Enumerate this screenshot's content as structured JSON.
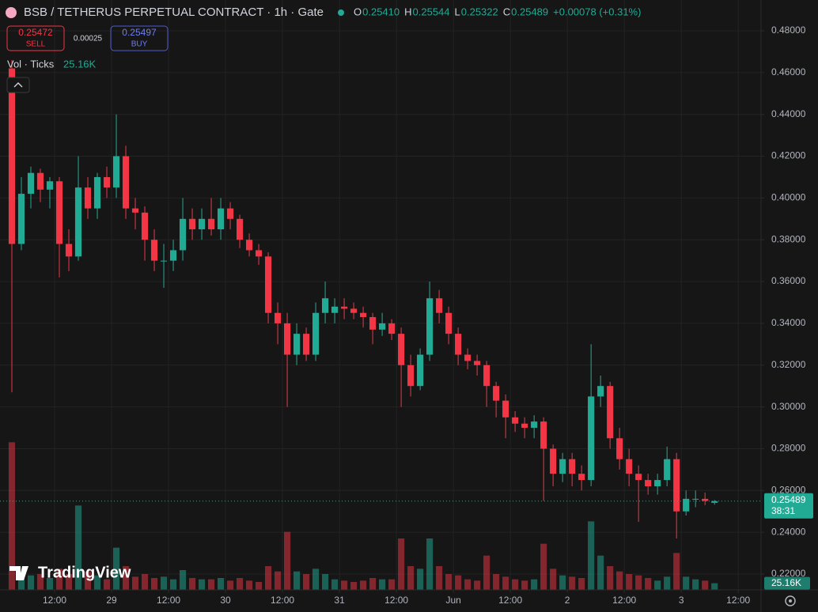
{
  "chart_data": {
    "type": "candlestick",
    "title": "BSB / TETHERUS PERPETUAL CONTRACT · 1h · Gate",
    "ohlc_header": [
      {
        "key": "O",
        "value": "0.25410"
      },
      {
        "key": "H",
        "value": "0.25544"
      },
      {
        "key": "L",
        "value": "0.25322"
      },
      {
        "key": "C",
        "value": "0.25489"
      }
    ],
    "change": "+0.00078 (+0.31%)",
    "sell": {
      "price": "0.25472",
      "label": "SELL"
    },
    "spread": "0.00025",
    "buy": {
      "price": "0.25497",
      "label": "BUY"
    },
    "volume_title": "Vol · Ticks",
    "brand": "TradingView",
    "up_color": "#22ab94",
    "down_color": "#f23645",
    "grid": true,
    "xlim": [
      0.5,
      160.8
    ],
    "ylim": [
      0.22,
      0.48
    ],
    "vlim": [
      0,
      600000
    ],
    "xticks": [
      {
        "value": 12,
        "label": "12:00"
      },
      {
        "value": 24,
        "label": "29"
      },
      {
        "value": 36,
        "label": "12:00"
      },
      {
        "value": 48,
        "label": "30"
      },
      {
        "value": 60,
        "label": "12:00"
      },
      {
        "value": 72,
        "label": "31"
      },
      {
        "value": 84,
        "label": "12:00"
      },
      {
        "value": 96,
        "label": "Jun"
      },
      {
        "value": 108,
        "label": "12:00"
      },
      {
        "value": 120,
        "label": "2"
      },
      {
        "value": 132,
        "label": "12:00"
      },
      {
        "value": 144,
        "label": "3"
      },
      {
        "value": 156,
        "label": "12:00"
      }
    ],
    "yticks": [
      {
        "value": 0.48,
        "label": "0.48000"
      },
      {
        "value": 0.46,
        "label": "0.46000"
      },
      {
        "value": 0.44,
        "label": "0.44000"
      },
      {
        "value": 0.42,
        "label": "0.42000"
      },
      {
        "value": 0.4,
        "label": "0.40000"
      },
      {
        "value": 0.38,
        "label": "0.38000"
      },
      {
        "value": 0.36,
        "label": "0.36000"
      },
      {
        "value": 0.34,
        "label": "0.34000"
      },
      {
        "value": 0.32,
        "label": "0.32000"
      },
      {
        "value": 0.3,
        "label": "0.30000"
      },
      {
        "value": 0.28,
        "label": "0.28000"
      },
      {
        "value": 0.26,
        "label": "0.26000"
      },
      {
        "value": 0.24,
        "label": "0.24000"
      },
      {
        "value": 0.22,
        "label": "0.22000"
      }
    ],
    "price_tag": {
      "value": 0.25489,
      "label": "0.25489",
      "countdown": "38:31"
    },
    "volume_tag": {
      "value": 25160,
      "label": "25.16K"
    },
    "candles": {
      "x": [
        3,
        5,
        7,
        9,
        11,
        13,
        15,
        17,
        19,
        21,
        23,
        25,
        27,
        29,
        31,
        33,
        35,
        37,
        39,
        41,
        43,
        45,
        47,
        49,
        51,
        53,
        55,
        57,
        59,
        61,
        63,
        65,
        67,
        69,
        71,
        73,
        75,
        77,
        79,
        81,
        83,
        85,
        87,
        89,
        91,
        93,
        95,
        97,
        99,
        101,
        103,
        105,
        107,
        109,
        111,
        113,
        115,
        117,
        119,
        121,
        123,
        125,
        127,
        129,
        131,
        133,
        135,
        137,
        139,
        141,
        143,
        145,
        147,
        149,
        151
      ],
      "open": [
        0.462,
        0.378,
        0.402,
        0.412,
        0.404,
        0.408,
        0.378,
        0.372,
        0.405,
        0.395,
        0.41,
        0.405,
        0.42,
        0.395,
        0.393,
        0.38,
        0.37,
        0.37,
        0.375,
        0.39,
        0.385,
        0.39,
        0.385,
        0.395,
        0.39,
        0.38,
        0.375,
        0.372,
        0.345,
        0.34,
        0.325,
        0.335,
        0.325,
        0.345,
        0.345,
        0.348,
        0.347,
        0.345,
        0.343,
        0.337,
        0.34,
        0.335,
        0.32,
        0.31,
        0.325,
        0.352,
        0.345,
        0.335,
        0.325,
        0.322,
        0.32,
        0.31,
        0.303,
        0.295,
        0.292,
        0.29,
        0.293,
        0.28,
        0.268,
        0.275,
        0.268,
        0.265,
        0.305,
        0.31,
        0.285,
        0.275,
        0.268,
        0.265,
        0.262,
        0.265,
        0.275,
        0.25,
        0.256,
        0.256,
        0.2541
      ],
      "high": [
        0.466,
        0.41,
        0.415,
        0.414,
        0.41,
        0.41,
        0.385,
        0.42,
        0.41,
        0.412,
        0.415,
        0.44,
        0.425,
        0.4,
        0.396,
        0.385,
        0.378,
        0.38,
        0.4,
        0.395,
        0.395,
        0.4,
        0.4,
        0.398,
        0.392,
        0.383,
        0.378,
        0.374,
        0.35,
        0.345,
        0.34,
        0.338,
        0.35,
        0.36,
        0.352,
        0.352,
        0.35,
        0.348,
        0.345,
        0.345,
        0.342,
        0.338,
        0.325,
        0.328,
        0.36,
        0.356,
        0.348,
        0.338,
        0.328,
        0.325,
        0.322,
        0.312,
        0.306,
        0.298,
        0.295,
        0.296,
        0.295,
        0.282,
        0.278,
        0.278,
        0.272,
        0.33,
        0.315,
        0.312,
        0.29,
        0.28,
        0.272,
        0.268,
        0.268,
        0.281,
        0.278,
        0.26,
        0.26,
        0.259,
        0.25544
      ],
      "low": [
        0.307,
        0.375,
        0.395,
        0.398,
        0.395,
        0.362,
        0.365,
        0.37,
        0.39,
        0.39,
        0.4,
        0.4,
        0.39,
        0.385,
        0.37,
        0.365,
        0.357,
        0.365,
        0.37,
        0.38,
        0.38,
        0.382,
        0.38,
        0.385,
        0.376,
        0.372,
        0.368,
        0.34,
        0.33,
        0.3,
        0.32,
        0.322,
        0.322,
        0.34,
        0.34,
        0.342,
        0.342,
        0.338,
        0.33,
        0.334,
        0.332,
        0.3,
        0.305,
        0.308,
        0.322,
        0.34,
        0.33,
        0.32,
        0.318,
        0.315,
        0.3,
        0.295,
        0.285,
        0.288,
        0.285,
        0.285,
        0.255,
        0.262,
        0.264,
        0.262,
        0.26,
        0.262,
        0.3,
        0.28,
        0.27,
        0.262,
        0.245,
        0.258,
        0.258,
        0.262,
        0.237,
        0.248,
        0.252,
        0.253,
        0.25322
      ],
      "close": [
        0.378,
        0.402,
        0.412,
        0.404,
        0.408,
        0.378,
        0.372,
        0.405,
        0.395,
        0.41,
        0.405,
        0.42,
        0.395,
        0.393,
        0.38,
        0.37,
        0.37,
        0.375,
        0.39,
        0.385,
        0.39,
        0.385,
        0.395,
        0.39,
        0.38,
        0.375,
        0.372,
        0.345,
        0.34,
        0.325,
        0.335,
        0.325,
        0.345,
        0.352,
        0.348,
        0.347,
        0.345,
        0.343,
        0.337,
        0.34,
        0.335,
        0.32,
        0.31,
        0.325,
        0.352,
        0.345,
        0.335,
        0.325,
        0.322,
        0.32,
        0.31,
        0.303,
        0.295,
        0.292,
        0.29,
        0.293,
        0.28,
        0.268,
        0.275,
        0.268,
        0.265,
        0.305,
        0.31,
        0.285,
        0.275,
        0.268,
        0.265,
        0.262,
        0.265,
        0.275,
        0.25,
        0.256,
        0.256,
        0.255,
        0.25489
      ],
      "volume": [
        560000,
        70000,
        55000,
        60000,
        45000,
        80000,
        60000,
        320000,
        70000,
        55000,
        40000,
        160000,
        90000,
        50000,
        60000,
        45000,
        50000,
        40000,
        75000,
        45000,
        40000,
        40000,
        45000,
        35000,
        45000,
        35000,
        30000,
        90000,
        70000,
        220000,
        70000,
        60000,
        80000,
        60000,
        40000,
        35000,
        30000,
        35000,
        45000,
        40000,
        40000,
        195000,
        90000,
        80000,
        195000,
        90000,
        60000,
        55000,
        40000,
        35000,
        130000,
        60000,
        50000,
        40000,
        35000,
        40000,
        175000,
        80000,
        55000,
        50000,
        45000,
        260000,
        130000,
        90000,
        70000,
        60000,
        55000,
        45000,
        35000,
        50000,
        140000,
        50000,
        40000,
        35000,
        25160
      ]
    }
  }
}
